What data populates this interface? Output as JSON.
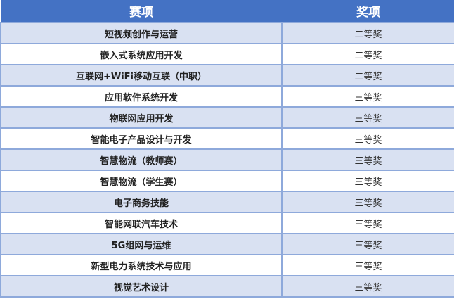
{
  "headers": [
    "赛项",
    "奖项"
  ],
  "colors": {
    "header": "#4472C4",
    "band": "#D9E1F2",
    "border": "#8EA9DB"
  },
  "rows": [
    {
      "name": "短视频创作与运营",
      "award": "二等奖"
    },
    {
      "name": "嵌入式系统应用开发",
      "award": "二等奖"
    },
    {
      "name": "互联网+WiFi移动互联（中职）",
      "award": "二等奖"
    },
    {
      "name": "应用软件系统开发",
      "award": "三等奖"
    },
    {
      "name": "物联网应用开发",
      "award": "三等奖"
    },
    {
      "name": "智能电子产品设计与开发",
      "award": "三等奖"
    },
    {
      "name": "智慧物流（教师赛）",
      "award": "三等奖"
    },
    {
      "name": "智慧物流（学生赛）",
      "award": "三等奖"
    },
    {
      "name": "电子商务技能",
      "award": "三等奖"
    },
    {
      "name": "智能网联汽车技术",
      "award": "三等奖"
    },
    {
      "name": "5G组网与运维",
      "award": "三等奖"
    },
    {
      "name": "新型电力系统技术与应用",
      "award": "三等奖"
    },
    {
      "name": "视觉艺术设计",
      "award": "三等奖"
    }
  ]
}
